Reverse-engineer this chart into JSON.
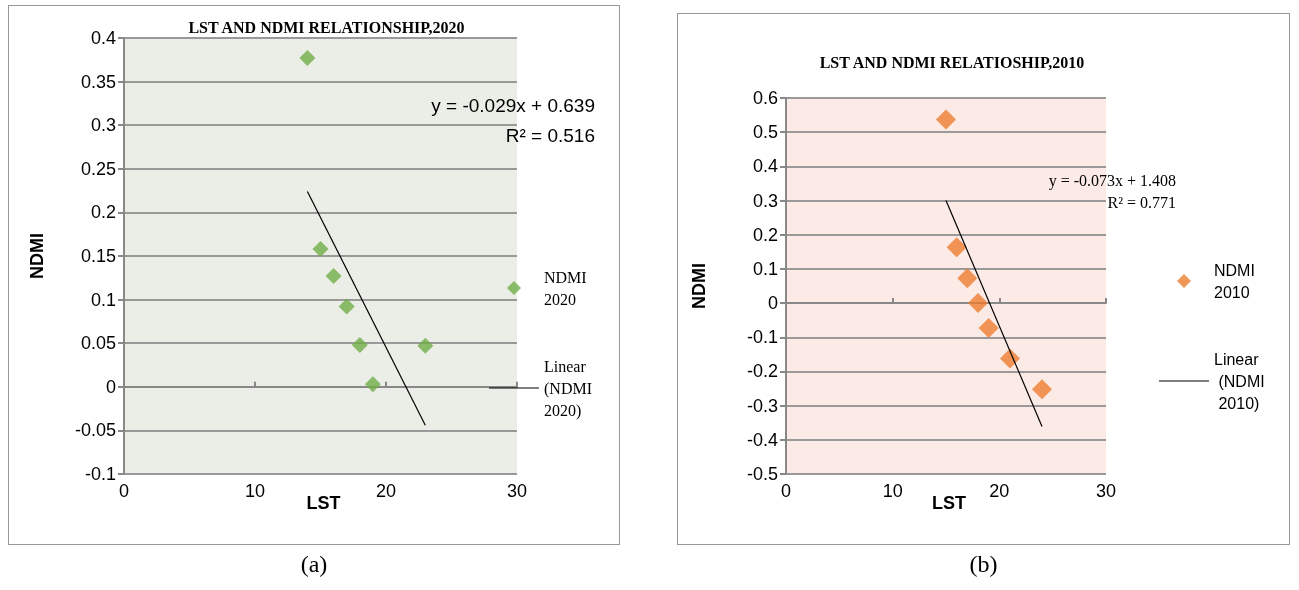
{
  "chart_data": [
    {
      "type": "scatter",
      "title": "LST AND NDMI RELATIONSHIP,2020",
      "xlabel": "LST",
      "ylabel": "NDMI",
      "xlim": [
        0,
        30
      ],
      "xticks": [
        0,
        10,
        20,
        30
      ],
      "ylim": [
        -0.1,
        0.4
      ],
      "yticks": [
        -0.1,
        -0.05,
        0,
        0.05,
        0.1,
        0.15,
        0.2,
        0.25,
        0.3,
        0.35,
        0.4
      ],
      "grid": "y",
      "legend": "right",
      "marker": "diamond",
      "annotations": [
        "y = -0.029x + 0.639",
        "R² = 0.516",
        "(a)"
      ],
      "series": [
        {
          "name": "NDMI 2020",
          "color": "#70ad47",
          "x": [
            14,
            15,
            16,
            17,
            18,
            19,
            23
          ],
          "values": [
            0.377,
            0.158,
            0.127,
            0.092,
            0.048,
            0.003,
            0.047
          ]
        },
        {
          "name": "Linear (NDMI 2020)",
          "type": "line",
          "marker": "none",
          "color": "#000000",
          "x": [
            14,
            23
          ],
          "values": [
            0.224,
            -0.044
          ]
        }
      ]
    },
    {
      "type": "scatter",
      "title": "LST AND NDMI RELATIOSHIP,2010",
      "xlabel": "LST",
      "ylabel": "NDMI",
      "xlim": [
        0,
        30
      ],
      "xticks": [
        0,
        10,
        20,
        30
      ],
      "ylim": [
        -0.5,
        0.6
      ],
      "yticks": [
        -0.5,
        -0.4,
        -0.3,
        -0.2,
        -0.1,
        0,
        0.1,
        0.2,
        0.3,
        0.4,
        0.5,
        0.6
      ],
      "grid": "y",
      "legend": "right",
      "marker": "diamond",
      "annotations": [
        "y = -0.073x + 1.408",
        "R² = 0.771",
        "(b)"
      ],
      "series": [
        {
          "name": "NDMI 2010",
          "color": "#ed7d31",
          "x": [
            15,
            16,
            17,
            18,
            19,
            21,
            24
          ],
          "values": [
            0.537,
            0.163,
            0.073,
            0.0,
            -0.073,
            -0.162,
            -0.252
          ]
        },
        {
          "name": "Linear (NDMI 2010)",
          "type": "line",
          "marker": "none",
          "color": "#000000",
          "x": [
            15,
            24
          ],
          "values": [
            0.3,
            -0.361
          ]
        }
      ]
    }
  ]
}
